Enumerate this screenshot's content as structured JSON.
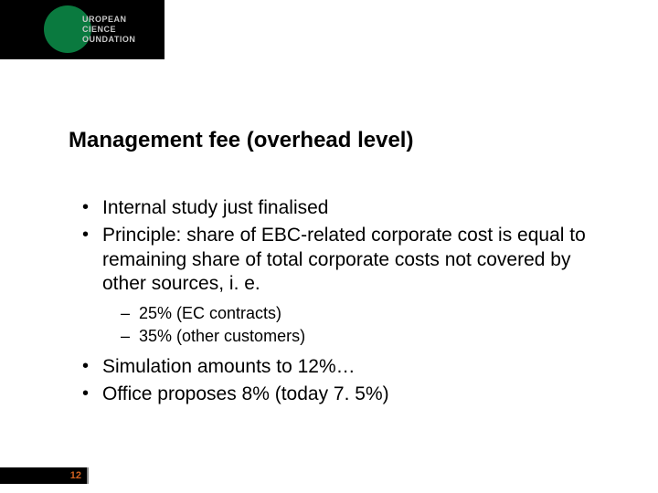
{
  "logo": {
    "line1": "UROPEAN",
    "line2": "CIENCE",
    "line3": "OUNDATION",
    "circle_color": "#0a7a3f",
    "bg_color": "#000000"
  },
  "title": "Management fee (overhead level)",
  "bullets": {
    "b1": "Internal study just finalised",
    "b2": "Principle: share of EBC-related corporate cost is equal to remaining share of total corporate costs not covered by other sources, i. e.",
    "s1": "25% (EC contracts)",
    "s2": "35% (other customers)",
    "b3": "Simulation amounts to 12%…",
    "b4": "Office proposes 8% (today 7. 5%)"
  },
  "page_number": "12",
  "colors": {
    "text": "#000000",
    "bg": "#ffffff",
    "page_num": "#d06020"
  }
}
